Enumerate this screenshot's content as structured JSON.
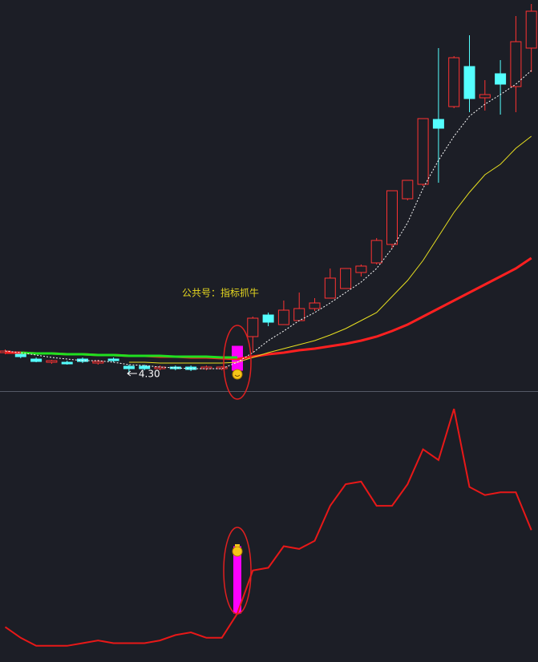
{
  "chart_data": [
    {
      "type": "candlestick",
      "ylim": [
        4.08,
        8.96
      ],
      "open": [
        4.56,
        4.54,
        4.48,
        4.44,
        4.44,
        4.48,
        4.43,
        4.48,
        4.39,
        4.39,
        4.36,
        4.38,
        4.38,
        4.36,
        4.36,
        4.34,
        4.76,
        5.03,
        4.91,
        4.96,
        5.11,
        5.24,
        5.36,
        5.56,
        5.68,
        5.91,
        6.48,
        6.66,
        7.47,
        7.63,
        8.13,
        7.74,
        8.04,
        7.88,
        8.36
      ],
      "high": [
        4.6,
        4.56,
        4.5,
        4.47,
        4.46,
        4.5,
        4.47,
        4.5,
        4.41,
        4.41,
        4.4,
        4.4,
        4.4,
        4.4,
        4.39,
        4.64,
        5.01,
        5.06,
        5.21,
        5.31,
        5.24,
        5.61,
        5.61,
        5.66,
        5.99,
        6.58,
        6.71,
        7.48,
        8.36,
        8.26,
        8.52,
        7.96,
        8.21,
        8.76,
        8.91
      ],
      "low": [
        4.54,
        4.49,
        4.44,
        4.42,
        4.41,
        4.43,
        4.41,
        4.44,
        4.3,
        4.34,
        4.34,
        4.34,
        4.33,
        4.34,
        4.34,
        4.34,
        4.56,
        4.89,
        4.91,
        4.96,
        5.08,
        5.24,
        5.36,
        5.51,
        5.66,
        5.86,
        6.46,
        6.64,
        6.68,
        7.61,
        7.56,
        7.58,
        7.53,
        7.56,
        8.06
      ],
      "close": [
        4.58,
        4.51,
        4.45,
        4.46,
        4.42,
        4.45,
        4.45,
        4.46,
        4.36,
        4.36,
        4.38,
        4.36,
        4.35,
        4.38,
        4.38,
        4.64,
        4.99,
        4.94,
        5.09,
        5.11,
        5.18,
        5.49,
        5.61,
        5.64,
        5.96,
        6.58,
        6.71,
        7.48,
        7.36,
        8.24,
        7.73,
        7.78,
        7.91,
        8.44,
        8.82
      ],
      "colors": [
        "#ff3232",
        "#54ffff",
        "#54ffff",
        "#ff3232",
        "#54ffff",
        "#54ffff",
        "#ff3232",
        "#54ffff",
        "#54ffff",
        "#54ffff",
        "#ff3232",
        "#54ffff",
        "#54ffff",
        "#ff3232",
        "#ff3232",
        "#ff00ff",
        "#ff3232",
        "#54ffff",
        "#ff3232",
        "#ff3232",
        "#ff3232",
        "#ff3232",
        "#ff3232",
        "#ff3232",
        "#ff3232",
        "#ff3232",
        "#ff3232",
        "#ff3232",
        "#54ffff",
        "#ff3232",
        "#54ffff",
        "#ff3232",
        "#54ffff",
        "#ff3232",
        "#ff3232"
      ],
      "lines": [
        {
          "color": "#ff2020",
          "width": 3,
          "dashed": false,
          "values": [
            4.56,
            4.56,
            4.55,
            4.55,
            4.54,
            4.54,
            4.53,
            4.53,
            4.52,
            4.52,
            4.51,
            4.51,
            4.5,
            4.5,
            4.49,
            4.48,
            4.51,
            4.54,
            4.56,
            4.59,
            4.61,
            4.64,
            4.67,
            4.71,
            4.76,
            4.83,
            4.91,
            5.01,
            5.11,
            5.21,
            5.31,
            5.41,
            5.51,
            5.61,
            5.74
          ]
        },
        {
          "color": "#e8e020",
          "width": 1,
          "dashed": false,
          "values": [
            null,
            null,
            null,
            null,
            null,
            null,
            null,
            null,
            4.44,
            4.44,
            4.43,
            4.43,
            4.43,
            4.43,
            4.43,
            4.44,
            4.5,
            4.56,
            4.61,
            4.66,
            4.71,
            4.78,
            4.86,
            4.96,
            5.06,
            5.26,
            5.46,
            5.71,
            6.01,
            6.31,
            6.56,
            6.78,
            6.91,
            7.11,
            7.26
          ]
        },
        {
          "color": "#20e020",
          "width": 3,
          "dashed": false,
          "values": [
            null,
            4.56,
            4.55,
            4.55,
            4.54,
            4.54,
            4.53,
            4.53,
            4.52,
            4.52,
            4.52,
            4.51,
            4.51,
            4.51,
            4.5,
            4.5
          ]
        },
        {
          "color": "#ffffff",
          "width": 1,
          "dashed": true,
          "values": [
            4.58,
            4.56,
            4.53,
            4.5,
            4.48,
            4.46,
            4.46,
            4.44,
            4.41,
            4.4,
            4.38,
            4.37,
            4.36,
            4.36,
            4.36,
            4.44,
            4.56,
            4.71,
            4.83,
            4.96,
            5.06,
            5.18,
            5.31,
            5.44,
            5.61,
            5.86,
            6.18,
            6.61,
            6.96,
            7.26,
            7.51,
            7.66,
            7.78,
            7.91,
            8.08
          ]
        }
      ],
      "annotation": "公共号：指标抓牛",
      "min_label": {
        "value": 4.3,
        "label": "4.30"
      }
    },
    {
      "type": "line",
      "ylim": [
        0,
        100
      ],
      "color": "#e81818",
      "values": [
        13,
        9,
        6,
        6,
        6,
        7,
        8,
        7,
        7,
        7,
        8,
        10,
        11,
        9,
        9,
        18,
        34,
        35,
        43,
        42,
        45,
        58,
        66,
        67,
        58,
        58,
        66,
        79,
        75,
        94,
        65,
        62,
        63,
        63,
        49
      ],
      "signal": [
        null,
        null,
        null,
        null,
        null,
        null,
        null,
        null,
        null,
        null,
        null,
        null,
        null,
        null,
        null,
        43,
        null,
        null,
        null,
        null,
        null,
        null,
        null,
        null,
        null,
        null,
        null,
        null,
        null,
        null,
        null,
        null,
        null,
        null,
        null
      ],
      "signal_color": "#ff00ff"
    }
  ]
}
